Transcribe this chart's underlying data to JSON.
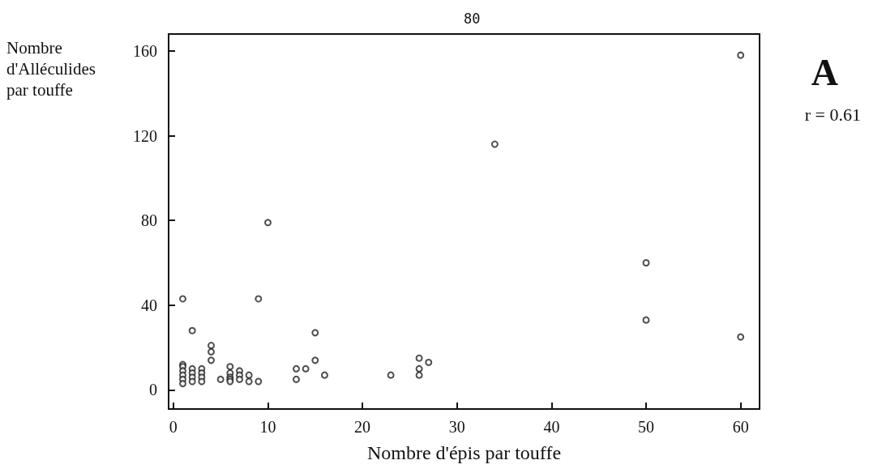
{
  "chart_data": {
    "type": "scatter",
    "xlabel": "Nombre d'épis par touffe",
    "ylabel": "Nombre d'Alléculides par touffe",
    "annotations": [
      "80",
      "A",
      "r = 0.61"
    ],
    "x": [
      1,
      1,
      1,
      1,
      1,
      1,
      1,
      2,
      2,
      2,
      2,
      2,
      3,
      3,
      3,
      3,
      4,
      4,
      4,
      5,
      6,
      6,
      6,
      6,
      6,
      7,
      7,
      7,
      8,
      8,
      9,
      9,
      10,
      13,
      13,
      14,
      15,
      15,
      16,
      23,
      26,
      26,
      26,
      27,
      34,
      50,
      50,
      60,
      60
    ],
    "values": [
      43,
      12,
      11,
      9,
      7,
      5,
      3,
      28,
      10,
      8,
      6,
      4,
      10,
      8,
      6,
      4,
      21,
      18,
      14,
      5,
      11,
      8,
      6,
      5,
      4,
      9,
      7,
      5,
      7,
      4,
      43,
      4,
      79,
      10,
      5,
      10,
      27,
      14,
      7,
      7,
      15,
      10,
      7,
      13,
      116,
      60,
      33,
      158,
      25
    ],
    "color": "#222222",
    "marker": "circle",
    "xlim": [
      -0.5,
      62
    ],
    "xticks": [
      0,
      10,
      20,
      30,
      40,
      50,
      60
    ],
    "ylim": [
      -9,
      168
    ],
    "yticks": [
      0,
      40,
      80,
      120,
      160
    ],
    "grid": false
  }
}
